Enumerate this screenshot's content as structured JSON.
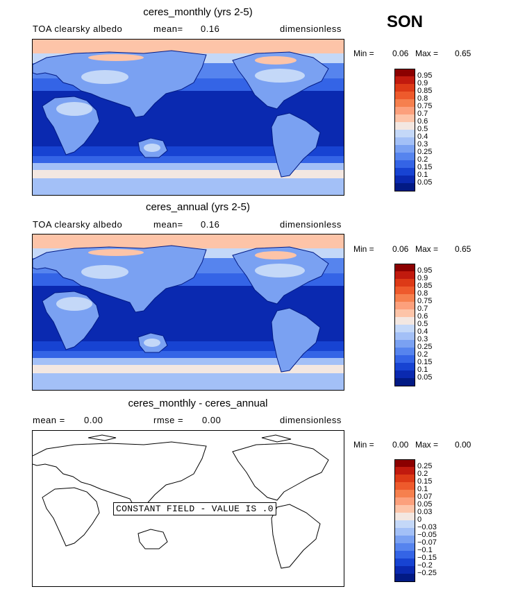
{
  "season": "SON",
  "panels": [
    {
      "title": "ceres_monthly (yrs 2-5)",
      "left_label": "TOA clearsky albedo",
      "mid_label": "mean=",
      "mid_value": "0.16",
      "right_label": "dimensionless",
      "min_label": "Min =",
      "min_value": "0.06",
      "max_label": "Max =",
      "max_value": "0.65",
      "colorbar": {
        "levels": [
          "0.95",
          "0.9",
          "0.85",
          "0.8",
          "0.75",
          "0.7",
          "0.6",
          "0.5",
          "0.4",
          "0.3",
          "0.25",
          "0.2",
          "0.15",
          "0.1",
          "0.05"
        ],
        "colors": [
          "#8b0000",
          "#c11a0e",
          "#dd3a17",
          "#ee5a2c",
          "#f6804e",
          "#fca07c",
          "#fdc4a8",
          "#f3e7e1",
          "#c4d8f8",
          "#a3c0f7",
          "#7aa1f2",
          "#5684ee",
          "#3464e6",
          "#1743d2",
          "#0a29b0",
          "#021a84"
        ]
      }
    },
    {
      "title": "ceres_annual (yrs 2-5)",
      "left_label": "TOA clearsky albedo",
      "mid_label": "mean=",
      "mid_value": "0.16",
      "right_label": "dimensionless",
      "min_label": "Min =",
      "min_value": "0.06",
      "max_label": "Max =",
      "max_value": "0.65",
      "colorbar": {
        "levels": [
          "0.95",
          "0.9",
          "0.85",
          "0.8",
          "0.75",
          "0.7",
          "0.6",
          "0.5",
          "0.4",
          "0.3",
          "0.25",
          "0.2",
          "0.15",
          "0.1",
          "0.05"
        ],
        "colors": [
          "#8b0000",
          "#c11a0e",
          "#dd3a17",
          "#ee5a2c",
          "#f6804e",
          "#fca07c",
          "#fdc4a8",
          "#f3e7e1",
          "#c4d8f8",
          "#a3c0f7",
          "#7aa1f2",
          "#5684ee",
          "#3464e6",
          "#1743d2",
          "#0a29b0",
          "#021a84"
        ]
      }
    },
    {
      "title": "ceres_monthly - ceres_annual",
      "left_label": "mean =",
      "left_value": "0.00",
      "mid_label": "rmse =",
      "mid_value": "0.00",
      "right_label": "dimensionless",
      "min_label": "Min =",
      "min_value": "0.00",
      "max_label": "Max =",
      "max_value": "0.00",
      "message": "CONSTANT FIELD - VALUE IS .0",
      "colorbar": {
        "levels": [
          "0.25",
          "0.2",
          "0.15",
          "0.1",
          "0.07",
          "0.05",
          "0.03",
          "0",
          "−0.03",
          "−0.05",
          "−0.07",
          "−0.1",
          "−0.15",
          "−0.2",
          "−0.25"
        ],
        "colors": [
          "#8b0000",
          "#c11a0e",
          "#dd3a17",
          "#ee5a2c",
          "#f6804e",
          "#fca07c",
          "#fdc4a8",
          "#f3e7e1",
          "#c4d8f8",
          "#a3c0f7",
          "#7aa1f2",
          "#5684ee",
          "#3464e6",
          "#1743d2",
          "#0a29b0",
          "#021a84"
        ]
      }
    }
  ]
}
